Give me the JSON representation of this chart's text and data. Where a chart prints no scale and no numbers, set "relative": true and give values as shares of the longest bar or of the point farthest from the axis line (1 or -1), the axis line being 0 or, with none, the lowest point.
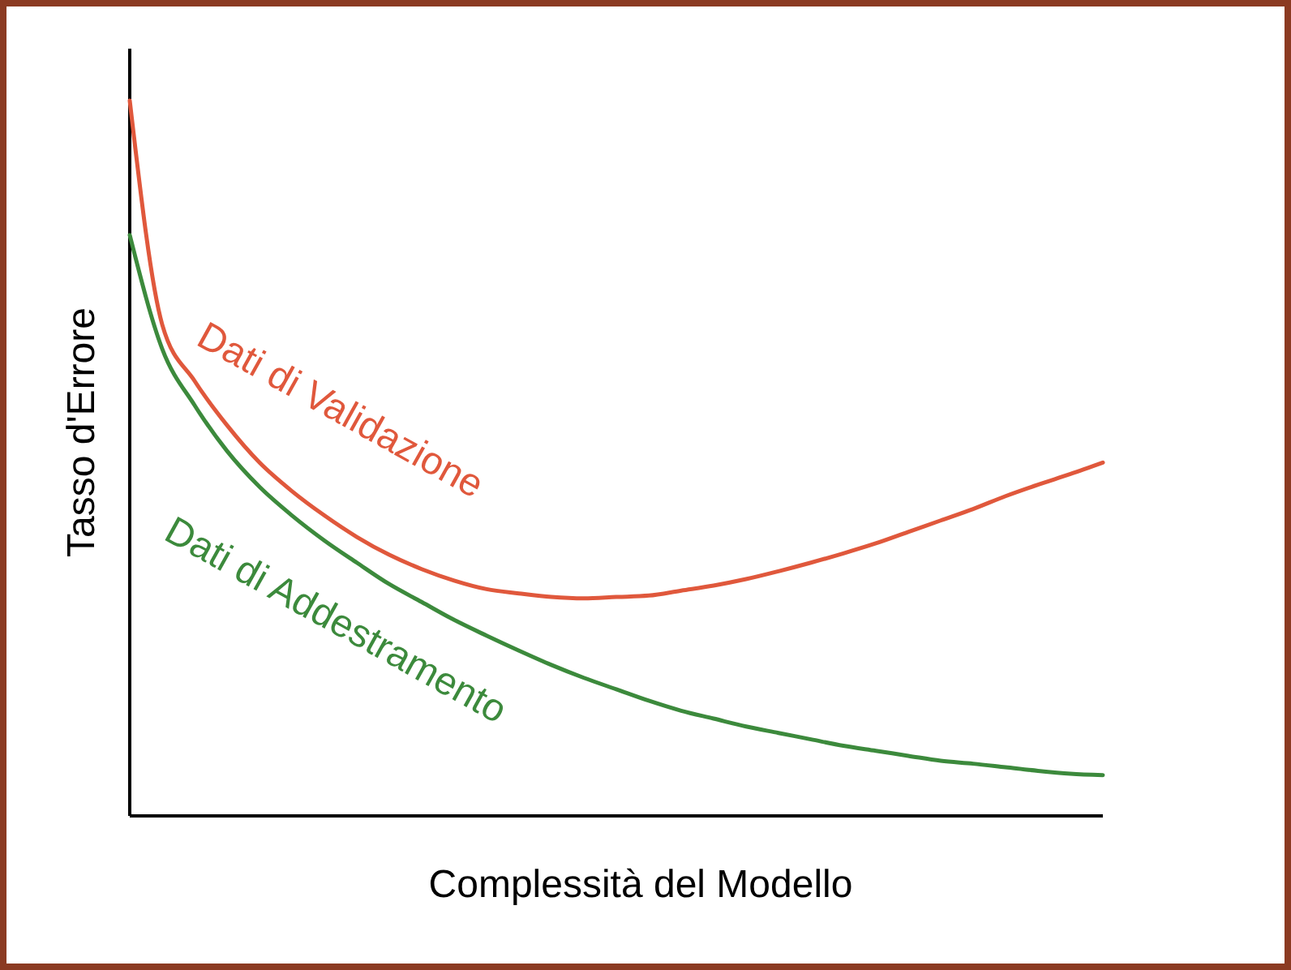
{
  "chart_data": {
    "type": "line",
    "relative": true,
    "xlabel": "Complessità del Modello",
    "ylabel": "Tasso d'Errore",
    "marker": "none",
    "line_style": "solid",
    "categories": [
      null,
      null,
      null,
      null,
      null,
      null,
      null,
      null,
      null,
      null,
      null,
      null,
      null,
      null,
      null,
      null,
      null,
      null,
      null,
      null,
      null,
      null,
      null,
      null,
      null,
      null,
      null,
      null,
      null,
      null,
      null
    ],
    "series": [
      {
        "name": "Dati di Validazione",
        "color": "#e0583c",
        "values": [
          1,
          0.687,
          0.608,
          0.546,
          0.494,
          0.454,
          0.42,
          0.39,
          0.365,
          0.345,
          0.329,
          0.317,
          0.311,
          0.306,
          0.304,
          0.306,
          0.308,
          0.315,
          0.322,
          0.331,
          0.342,
          0.354,
          0.367,
          0.381,
          0.397,
          0.413,
          0.429,
          0.447,
          0.463,
          0.478,
          0.494
        ]
      },
      {
        "name": "Dati di Addestramento",
        "color": "#3c8a3c",
        "values": [
          0.812,
          0.653,
          0.574,
          0.51,
          0.46,
          0.42,
          0.385,
          0.354,
          0.324,
          0.299,
          0.274,
          0.252,
          0.231,
          0.211,
          0.193,
          0.177,
          0.161,
          0.147,
          0.136,
          0.125,
          0.116,
          0.107,
          0.098,
          0.091,
          0.084,
          0.077,
          0.073,
          0.068,
          0.063,
          0.059,
          0.057
        ]
      }
    ]
  }
}
